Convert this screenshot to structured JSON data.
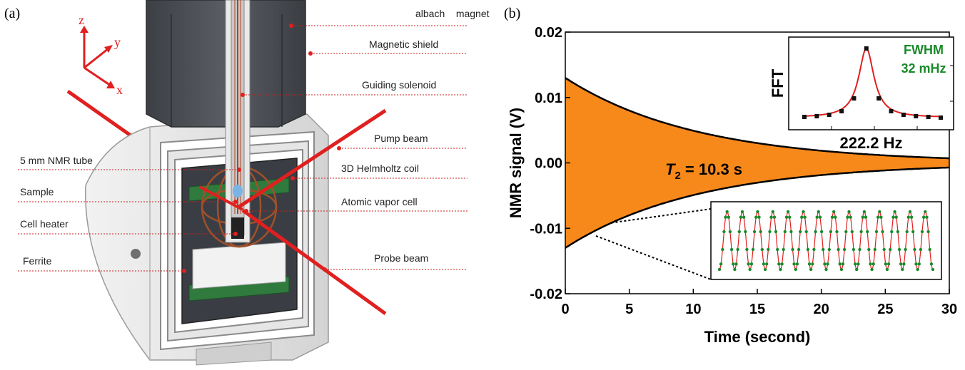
{
  "panel_a": {
    "label": "(a)",
    "axes_letters": {
      "z": "z",
      "y": "y",
      "x": "x"
    },
    "callouts": [
      {
        "id": "halbach-magnet",
        "text": "albach    magnet"
      },
      {
        "id": "magnetic-shield",
        "text": "Magnetic shield"
      },
      {
        "id": "guiding-solenoid",
        "text": "Guiding solenoid"
      },
      {
        "id": "pump-beam",
        "text": "Pump beam"
      },
      {
        "id": "helmholtz-coil",
        "text": "3D Helmholtz coil"
      },
      {
        "id": "atomic-vapor-cell",
        "text": "Atomic vapor cell"
      },
      {
        "id": "probe-beam",
        "text": "Probe beam"
      },
      {
        "id": "nmr-tube",
        "text": "5 mm NMR tube"
      },
      {
        "id": "sample",
        "text": "Sample"
      },
      {
        "id": "cell-heater",
        "text": "Cell heater"
      },
      {
        "id": "ferrite",
        "text": "Ferrite"
      }
    ],
    "colors": {
      "beam": "#e0201f",
      "shield": "#e9e9e9",
      "magnet": "#4a4d52",
      "board": "#2f7a3c"
    }
  },
  "panel_b": {
    "label": "(b)",
    "chart_data": [
      {
        "type": "area",
        "xlabel": "Time (second)",
        "ylabel": "NMR signal (V)",
        "xlim": [
          0,
          30
        ],
        "ylim": [
          -0.02,
          0.02
        ],
        "x_ticks": [
          0,
          5,
          10,
          15,
          20,
          25,
          30
        ],
        "y_ticks": [
          -0.02,
          -0.01,
          0.0,
          0.01,
          0.02
        ],
        "y_tick_labels": [
          "-0.02",
          "-0.01",
          "0.00",
          "0.01",
          "0.02"
        ],
        "series": [
          {
            "kind": "decaying-oscillation",
            "amplitude": 0.013,
            "t2_s": 10.3,
            "color": "#f7891b"
          },
          {
            "kind": "envelope-fit",
            "color": "#000000"
          }
        ],
        "annotation": {
          "prefix": "T",
          "subscript": "2",
          "suffix": " = 10.3 s"
        },
        "grid": false
      },
      {
        "type": "line",
        "title": "",
        "ylabel": "FFT",
        "xlabel": "222.2 Hz",
        "peak_hz": 222.2,
        "fwhm_label": "FWHM",
        "fwhm_value": "32 mHz",
        "points_x": [
          -5,
          -4,
          -3,
          -2,
          -1,
          0,
          1,
          2,
          3,
          4,
          5,
          6
        ],
        "points_y": [
          0.04,
          0.05,
          0.07,
          0.12,
          0.3,
          1.0,
          0.3,
          0.12,
          0.07,
          0.05,
          0.04,
          0.03
        ],
        "fit_color": "#e0201f",
        "point_color": "#111111"
      },
      {
        "type": "line",
        "title": "",
        "cycles": 14,
        "point_color": "#1a8a2a",
        "fit_color": "#e0201f"
      }
    ]
  }
}
